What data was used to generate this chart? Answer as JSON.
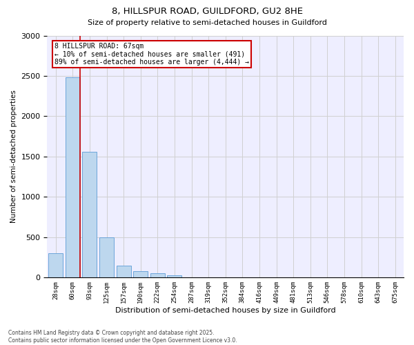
{
  "title1": "8, HILLSPUR ROAD, GUILDFORD, GU2 8HE",
  "title2": "Size of property relative to semi-detached houses in Guildford",
  "xlabel": "Distribution of semi-detached houses by size in Guildford",
  "ylabel": "Number of semi-detached properties",
  "categories": [
    "28sqm",
    "60sqm",
    "93sqm",
    "125sqm",
    "157sqm",
    "190sqm",
    "222sqm",
    "254sqm",
    "287sqm",
    "319sqm",
    "352sqm",
    "384sqm",
    "416sqm",
    "449sqm",
    "481sqm",
    "513sqm",
    "546sqm",
    "578sqm",
    "610sqm",
    "643sqm",
    "675sqm"
  ],
  "values": [
    300,
    2480,
    1560,
    500,
    150,
    80,
    55,
    30,
    0,
    0,
    0,
    0,
    0,
    0,
    0,
    0,
    0,
    0,
    0,
    0,
    0
  ],
  "bar_color": "#bdd7ee",
  "bar_edge_color": "#5b9bd5",
  "property_line_color": "#cc0000",
  "annotation_text": "8 HILLSPUR ROAD: 67sqm\n← 10% of semi-detached houses are smaller (491)\n89% of semi-detached houses are larger (4,444) →",
  "annotation_box_color": "#cc0000",
  "ylim": [
    0,
    3000
  ],
  "yticks": [
    0,
    500,
    1000,
    1500,
    2000,
    2500,
    3000
  ],
  "grid_color": "#d0d0d0",
  "bg_color": "#eeeeff",
  "footer1": "Contains HM Land Registry data © Crown copyright and database right 2025.",
  "footer2": "Contains public sector information licensed under the Open Government Licence v3.0."
}
